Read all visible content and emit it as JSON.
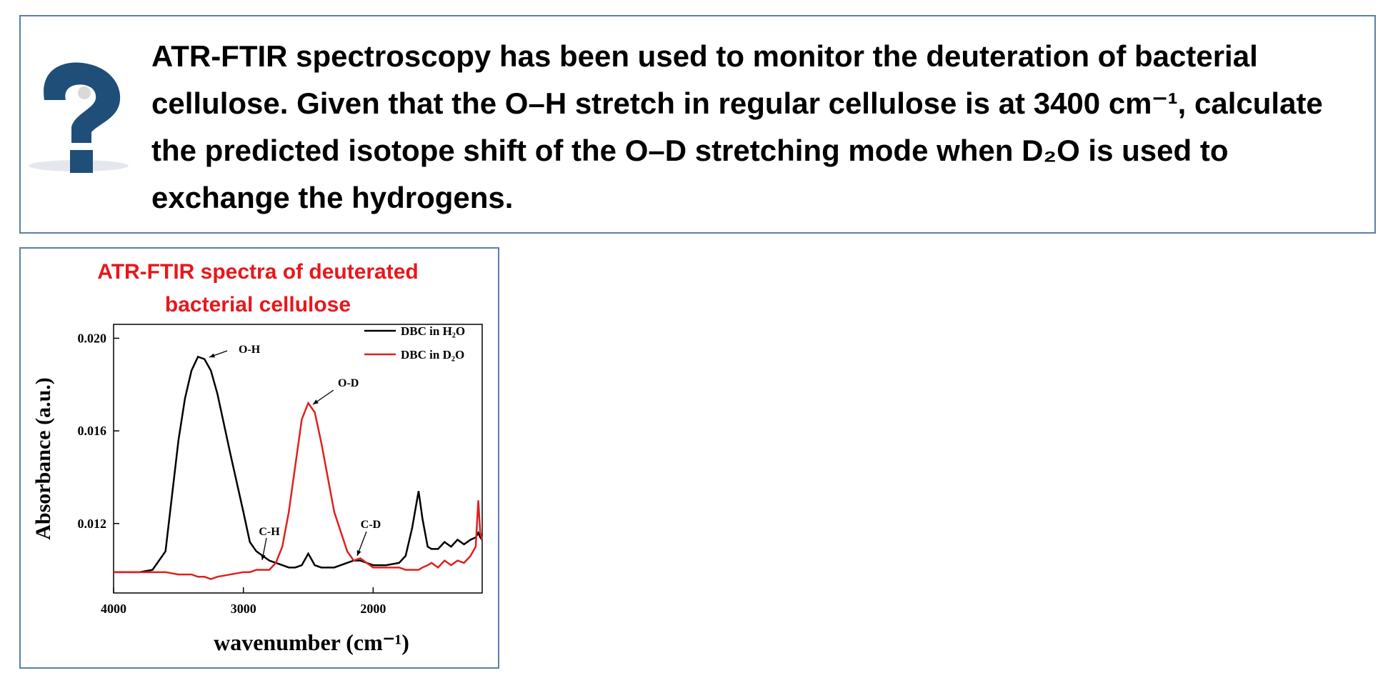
{
  "question": {
    "text": "ATR-FTIR spectroscopy has been used to monitor the deuteration of bacterial cellulose. Given that the O–H stretch in regular cellulose is at 3400 cm⁻¹, calculate the predicted isotope shift of the O–D stretching mode when D₂O is used to exchange the hydrogens."
  },
  "figure": {
    "caption": "ATR-FTIR spectra of deuterated bacterial cellulose",
    "chart_data": {
      "type": "line",
      "xlabel": "wavenumber (cm⁻¹)",
      "ylabel": "Absorbance (a.u.)",
      "x": [
        4000,
        3900,
        3800,
        3700,
        3600,
        3500,
        3450,
        3400,
        3350,
        3300,
        3250,
        3200,
        3100,
        3000,
        2950,
        2900,
        2800,
        2750,
        2700,
        2650,
        2600,
        2550,
        2500,
        2450,
        2400,
        2300,
        2200,
        2150,
        2100,
        2000,
        1900,
        1800,
        1750,
        1700,
        1650,
        1620,
        1580,
        1550,
        1500,
        1450,
        1400,
        1350,
        1300,
        1250,
        1210,
        1190,
        1175,
        1160
      ],
      "series": [
        {
          "name": "DBC in H₂O",
          "color": "#000000",
          "values": [
            0.0099,
            0.0099,
            0.0099,
            0.01,
            0.0108,
            0.0156,
            0.0174,
            0.0186,
            0.0192,
            0.0191,
            0.0186,
            0.0176,
            0.015,
            0.0125,
            0.0112,
            0.0108,
            0.0104,
            0.0103,
            0.0102,
            0.0101,
            0.0101,
            0.0102,
            0.0107,
            0.0102,
            0.0101,
            0.0101,
            0.0103,
            0.0104,
            0.0104,
            0.0102,
            0.0102,
            0.0103,
            0.0106,
            0.0118,
            0.0134,
            0.0122,
            0.011,
            0.0109,
            0.0109,
            0.0112,
            0.011,
            0.0113,
            0.0111,
            0.0113,
            0.0114,
            0.0116,
            0.0114,
            0.0113
          ]
        },
        {
          "name": "DBC in D₂O",
          "color": "#e0201e",
          "values": [
            0.0099,
            0.0099,
            0.0099,
            0.0099,
            0.0099,
            0.0098,
            0.0098,
            0.0098,
            0.0097,
            0.0097,
            0.0096,
            0.0097,
            0.0098,
            0.0099,
            0.0099,
            0.01,
            0.01,
            0.0103,
            0.011,
            0.0125,
            0.0145,
            0.0165,
            0.0172,
            0.0168,
            0.0155,
            0.0125,
            0.0108,
            0.0104,
            0.0105,
            0.0101,
            0.0101,
            0.0101,
            0.01,
            0.01,
            0.01,
            0.0101,
            0.0102,
            0.0103,
            0.0101,
            0.0104,
            0.0102,
            0.0104,
            0.0103,
            0.0106,
            0.011,
            0.013,
            0.0116,
            0.0113
          ]
        }
      ],
      "annotations": [
        "O-H",
        "O-D",
        "C-H",
        "C-D"
      ],
      "xlim": [
        4000,
        1160
      ],
      "xticks": [
        4000,
        3000,
        2000
      ],
      "ylim": [
        0.009,
        0.0206
      ],
      "yticks": [
        {
          "value": 0.02,
          "label": "0.020"
        },
        0.016,
        0.012
      ],
      "legend": "upper right"
    }
  }
}
